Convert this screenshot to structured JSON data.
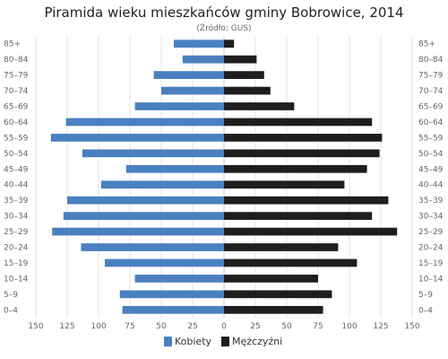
{
  "chart_data": {
    "type": "bar",
    "orientation": "horizontal-pyramid",
    "title": "Piramida wieku mieszkańców gminy Bobrowice, 2014",
    "subtitle": "(Źródło: GUS)",
    "categories": [
      "85+",
      "80–84",
      "75–79",
      "70–74",
      "65–69",
      "60–64",
      "55–59",
      "50–54",
      "45–49",
      "40–44",
      "35–39",
      "30–34",
      "25–29",
      "20–24",
      "15–19",
      "10–14",
      "5–9",
      "0–4"
    ],
    "series": [
      {
        "name": "Kobiety",
        "color": "#4a80c0",
        "values": [
          40,
          33,
          56,
          50,
          71,
          126,
          138,
          113,
          78,
          98,
          125,
          128,
          137,
          114,
          95,
          71,
          83,
          81
        ]
      },
      {
        "name": "Mężczyźni",
        "color": "#1e1e1e",
        "values": [
          8,
          26,
          32,
          37,
          56,
          118,
          126,
          124,
          114,
          96,
          131,
          118,
          138,
          91,
          106,
          75,
          86,
          79
        ]
      }
    ],
    "xticks": [
      "150",
      "125",
      "100",
      "75",
      "50",
      "25",
      "0",
      "25",
      "50",
      "75",
      "100",
      "125",
      "150"
    ],
    "xlim": [
      -150,
      150
    ],
    "grid": true,
    "legend": "bottom"
  }
}
